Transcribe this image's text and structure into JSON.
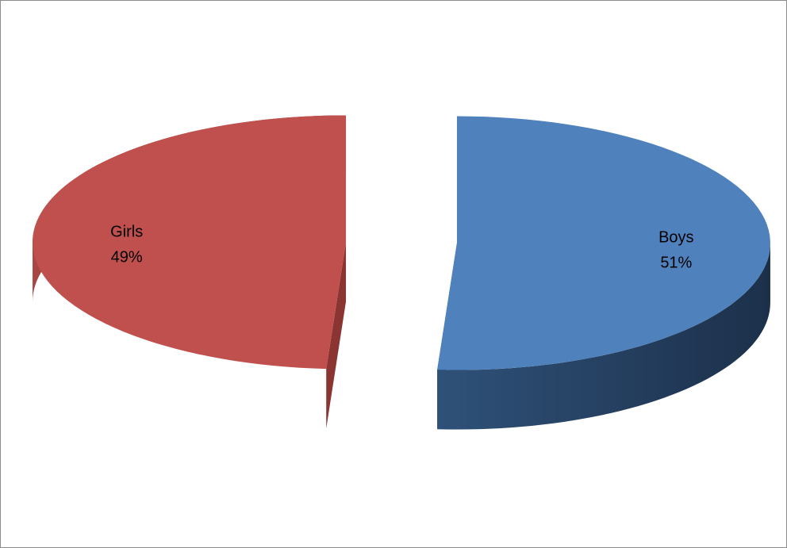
{
  "chart_data": {
    "type": "pie",
    "style": "3d-exploded",
    "title": "",
    "slices": [
      {
        "label": "Boys",
        "value": 51,
        "percent_label": "51%",
        "color": "#4f81bd",
        "side_color": "#253f5e"
      },
      {
        "label": "Girls",
        "value": 49,
        "percent_label": "49%",
        "color": "#c0504d",
        "side_color": "#7a2c2a"
      }
    ],
    "legend": "none",
    "data_labels": "category and percentage, inside slices"
  }
}
